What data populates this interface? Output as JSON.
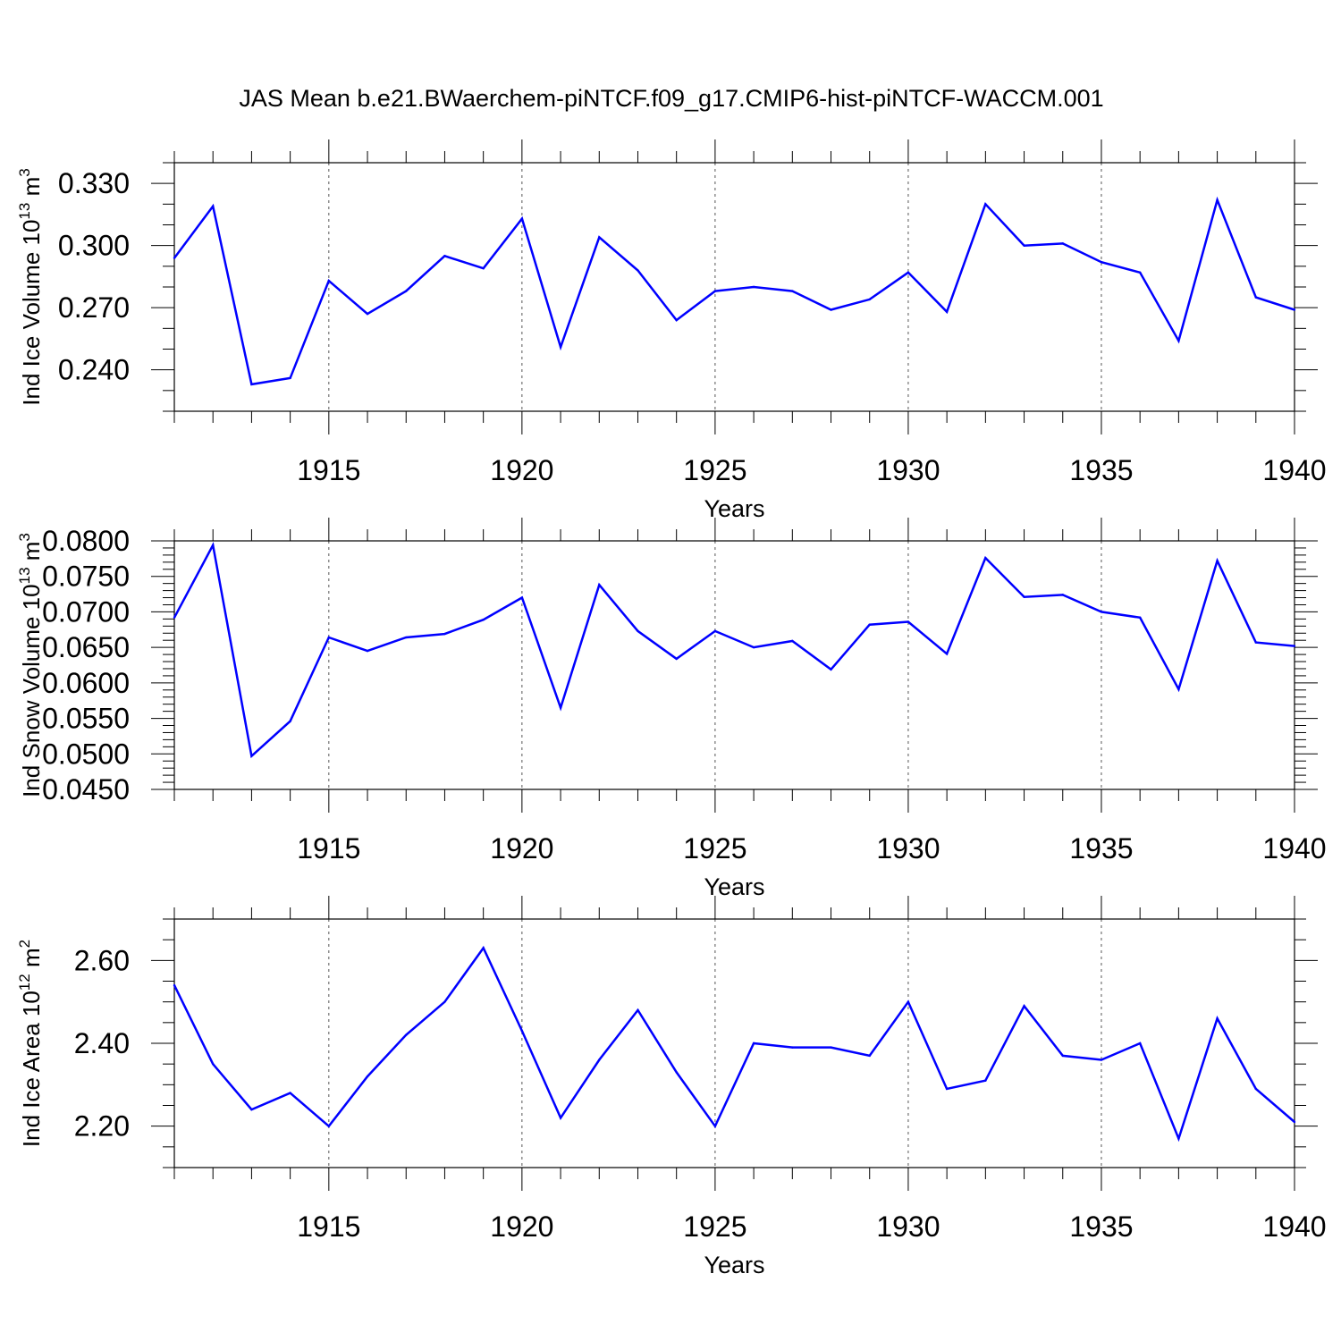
{
  "title": "JAS Mean b.e21.BWaerchem-piNTCF.f09_g17.CMIP6-hist-piNTCF-WACCM.001",
  "colors": {
    "series": "#0000ff",
    "axis": "#000000",
    "grid": "#555555"
  },
  "chart_data": [
    {
      "type": "line",
      "xlabel": "Years",
      "ylabel": "Ind Ice Volume 10",
      "ylabel_exp": "13",
      "ylabel_unit": " m",
      "ylabel_unit_exp": "3",
      "xlim": [
        1911,
        1940
      ],
      "ylim": [
        0.22,
        0.34
      ],
      "xticks": [
        1915,
        1920,
        1925,
        1930,
        1935,
        1940
      ],
      "yticks": [
        0.24,
        0.27,
        0.3,
        0.33
      ],
      "ytick_labels": [
        "0.240",
        "0.270",
        "0.300",
        "0.330"
      ],
      "yminor_step": 0.01,
      "grid": "x-dashed",
      "x": [
        1911,
        1912,
        1913,
        1914,
        1915,
        1916,
        1917,
        1918,
        1919,
        1920,
        1921,
        1922,
        1923,
        1924,
        1925,
        1926,
        1927,
        1928,
        1929,
        1930,
        1931,
        1932,
        1933,
        1934,
        1935,
        1936,
        1937,
        1938,
        1939,
        1940
      ],
      "values": [
        0.294,
        0.319,
        0.233,
        0.236,
        0.283,
        0.267,
        0.278,
        0.295,
        0.289,
        0.313,
        0.251,
        0.304,
        0.288,
        0.264,
        0.278,
        0.28,
        0.278,
        0.269,
        0.274,
        0.287,
        0.268,
        0.32,
        0.3,
        0.301,
        0.292,
        0.287,
        0.254,
        0.322,
        0.275,
        0.269
      ]
    },
    {
      "type": "line",
      "xlabel": "Years",
      "ylabel": "Ind Snow Volume 10",
      "ylabel_exp": "13",
      "ylabel_unit": " m",
      "ylabel_unit_exp": "3",
      "xlim": [
        1911,
        1940
      ],
      "ylim": [
        0.045,
        0.08
      ],
      "xticks": [
        1915,
        1920,
        1925,
        1930,
        1935,
        1940
      ],
      "yticks": [
        0.045,
        0.05,
        0.055,
        0.06,
        0.065,
        0.07,
        0.075,
        0.08
      ],
      "ytick_labels": [
        "0.0450",
        "0.0500",
        "0.0550",
        "0.0600",
        "0.0650",
        "0.0700",
        "0.0750",
        "0.0800"
      ],
      "yminor_step": 0.001,
      "grid": "x-dashed",
      "x": [
        1911,
        1912,
        1913,
        1914,
        1915,
        1916,
        1917,
        1918,
        1919,
        1920,
        1921,
        1922,
        1923,
        1924,
        1925,
        1926,
        1927,
        1928,
        1929,
        1930,
        1931,
        1932,
        1933,
        1934,
        1935,
        1936,
        1937,
        1938,
        1939,
        1940
      ],
      "values": [
        0.0692,
        0.0794,
        0.0497,
        0.0546,
        0.0664,
        0.0645,
        0.0664,
        0.0669,
        0.0689,
        0.072,
        0.0565,
        0.0738,
        0.0673,
        0.0634,
        0.0673,
        0.065,
        0.0659,
        0.0619,
        0.0682,
        0.0686,
        0.0641,
        0.0776,
        0.0721,
        0.0724,
        0.07,
        0.0692,
        0.0591,
        0.0772,
        0.0657,
        0.0652
      ]
    },
    {
      "type": "line",
      "xlabel": "Years",
      "ylabel": "Ind Ice Area 10",
      "ylabel_exp": "12",
      "ylabel_unit": " m",
      "ylabel_unit_exp": "2",
      "xlim": [
        1911,
        1940
      ],
      "ylim": [
        2.1,
        2.7
      ],
      "xticks": [
        1915,
        1920,
        1925,
        1930,
        1935,
        1940
      ],
      "yticks": [
        2.2,
        2.4,
        2.6
      ],
      "ytick_labels": [
        "2.20",
        "2.40",
        "2.60"
      ],
      "yminor_step": 0.05,
      "grid": "x-dashed",
      "x": [
        1911,
        1912,
        1913,
        1914,
        1915,
        1916,
        1917,
        1918,
        1919,
        1920,
        1921,
        1922,
        1923,
        1924,
        1925,
        1926,
        1927,
        1928,
        1929,
        1930,
        1931,
        1932,
        1933,
        1934,
        1935,
        1936,
        1937,
        1938,
        1939,
        1940
      ],
      "values": [
        2.54,
        2.35,
        2.24,
        2.28,
        2.2,
        2.32,
        2.42,
        2.5,
        2.63,
        2.43,
        2.22,
        2.36,
        2.48,
        2.33,
        2.2,
        2.4,
        2.39,
        2.39,
        2.37,
        2.5,
        2.29,
        2.31,
        2.49,
        2.37,
        2.36,
        2.4,
        2.17,
        2.46,
        2.29,
        2.21
      ]
    }
  ]
}
